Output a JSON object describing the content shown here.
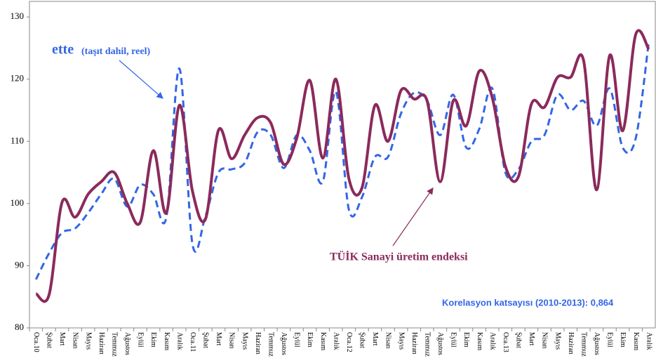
{
  "chart_data": {
    "type": "line",
    "categories": [
      "Oca.10",
      "Şubat",
      "Mart",
      "Nisan",
      "Mayıs",
      "Haziran",
      "Temmuz",
      "Ağustos",
      "Eylül",
      "Ekim",
      "Kasım",
      "Aralık",
      "Oca.11",
      "Şubat",
      "Mart",
      "Nisan",
      "Mayıs",
      "Haziran",
      "Temmuz",
      "Ağustos",
      "Eylül",
      "Ekim",
      "Kasım",
      "Aralık",
      "Oca.12",
      "Şubat",
      "Mart",
      "Nisan",
      "Mayıs",
      "Haziran",
      "Temmuz",
      "Ağustos",
      "Eylül",
      "Ekim",
      "Kasım",
      "Aralık",
      "Oca.13",
      "Şubat",
      "Mart",
      "Nisan",
      "Mayıs",
      "Haziran",
      "Temmuz",
      "Ağustos",
      "Eylül",
      "Ekim",
      "Kasım",
      "Aralık"
    ],
    "series": [
      {
        "name": "ette",
        "color": "#3366e6",
        "dashed": true,
        "values": [
          87.8,
          92,
          95.3,
          96,
          98.5,
          101.5,
          104,
          99.5,
          103,
          101.5,
          97.8,
          121.7,
          93.5,
          98,
          105,
          105.5,
          106.5,
          111.5,
          111,
          105.7,
          111,
          108.5,
          103.5,
          118,
          99,
          101,
          107.5,
          107.5,
          114.5,
          117.8,
          116.5,
          111,
          117.5,
          109,
          112,
          118.5,
          105,
          105.5,
          110,
          111,
          117.5,
          115,
          116.5,
          112.5,
          118.5,
          109,
          110.5,
          126
        ]
      },
      {
        "name": "TÜİK Sanayi üretim endeksi",
        "color": "#8b2a5c",
        "dashed": false,
        "values": [
          85.5,
          85.3,
          100.2,
          97.8,
          101.5,
          103.5,
          105,
          100,
          97,
          108.5,
          98.5,
          115.8,
          102,
          97.5,
          111.8,
          107.2,
          111,
          113.8,
          113,
          106.3,
          110.5,
          119.8,
          107.3,
          120,
          104,
          102.5,
          115.8,
          110,
          118.2,
          116.8,
          116.5,
          103.5,
          116.5,
          112.5,
          121.3,
          117,
          106,
          104.3,
          116,
          115.5,
          120.3,
          120.3,
          123,
          102.2,
          123.8,
          111.7,
          127.2,
          124.8
        ]
      }
    ],
    "series_note": "(taşıt dahil, reel)",
    "correlation": "Korelasyon katsayısı (2010-2013): 0,864",
    "ylim": [
      80,
      132.5
    ],
    "yticks": [
      80,
      90,
      100,
      110,
      120,
      130
    ]
  }
}
